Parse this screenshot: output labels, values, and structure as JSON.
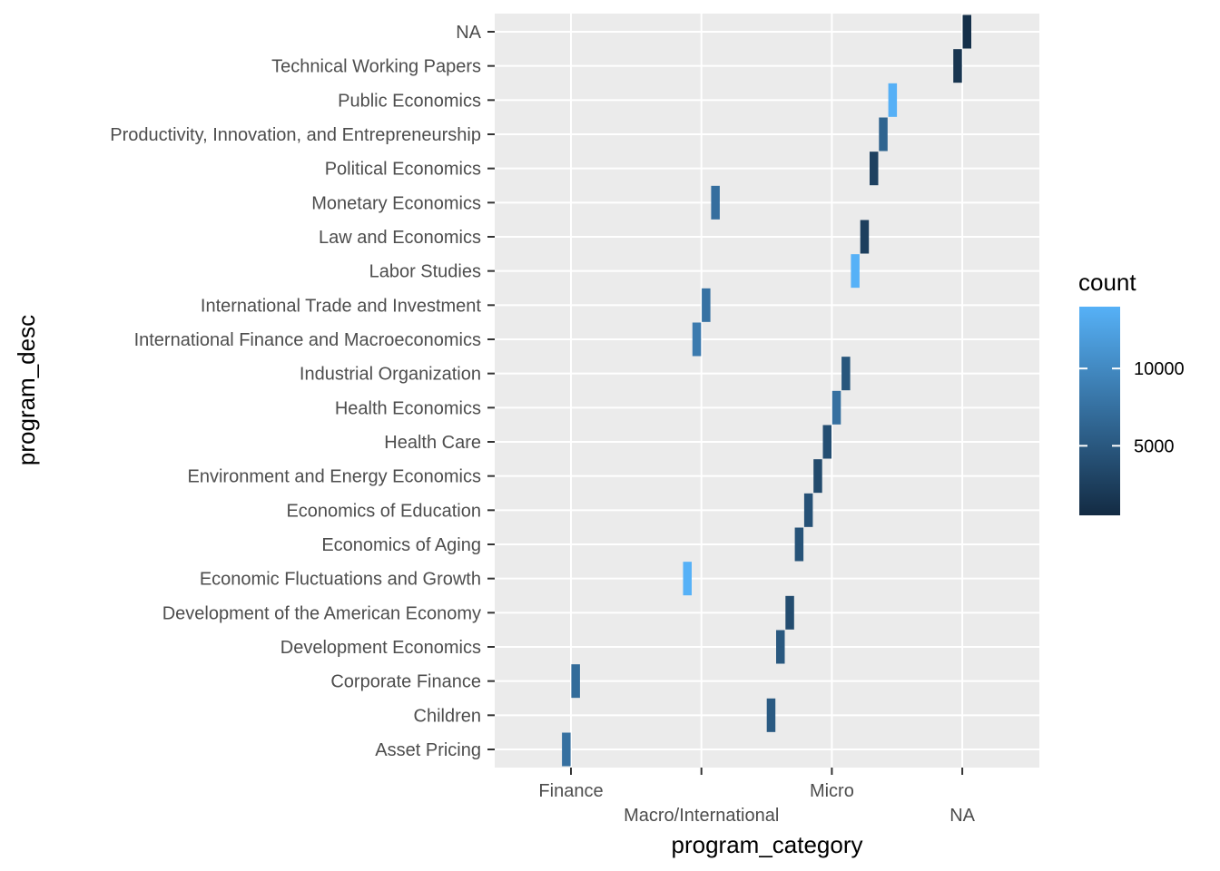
{
  "chart_data": {
    "type": "heatmap",
    "xlabel": "program_category",
    "ylabel": "program_desc",
    "x_categories": [
      "Finance",
      "Macro/International",
      "Micro",
      "NA"
    ],
    "y_categories": [
      "Asset Pricing",
      "Children",
      "Corporate Finance",
      "Development Economics",
      "Development of the American Economy",
      "Economic Fluctuations and Growth",
      "Economics of Aging",
      "Economics of Education",
      "Environment and Energy Economics",
      "Health Care",
      "Health Economics",
      "Industrial Organization",
      "International Finance and Macroeconomics",
      "International Trade and Investment",
      "Labor Studies",
      "Law and Economics",
      "Monetary Economics",
      "Political Economics",
      "Productivity, Innovation, and Entrepreneurship",
      "Public Economics",
      "Technical Working Papers",
      "NA"
    ],
    "cells": [
      {
        "y": "Asset Pricing",
        "x": "Finance",
        "count": 7500
      },
      {
        "y": "Children",
        "x": "Micro",
        "count": 5200
      },
      {
        "y": "Corporate Finance",
        "x": "Finance",
        "count": 7000
      },
      {
        "y": "Development Economics",
        "x": "Micro",
        "count": 5000
      },
      {
        "y": "Development of the American Economy",
        "x": "Micro",
        "count": 3800
      },
      {
        "y": "Economic Fluctuations and Growth",
        "x": "Macro/International",
        "count": 14000
      },
      {
        "y": "Economics of Aging",
        "x": "Micro",
        "count": 4500
      },
      {
        "y": "Economics of Education",
        "x": "Micro",
        "count": 4300
      },
      {
        "y": "Environment and Energy Economics",
        "x": "Micro",
        "count": 3600
      },
      {
        "y": "Health Care",
        "x": "Micro",
        "count": 4000
      },
      {
        "y": "Health Economics",
        "x": "Micro",
        "count": 7500
      },
      {
        "y": "Industrial Organization",
        "x": "Micro",
        "count": 4800
      },
      {
        "y": "International Finance and Macroeconomics",
        "x": "Macro/International",
        "count": 8500
      },
      {
        "y": "International Trade and Investment",
        "x": "Macro/International",
        "count": 7700
      },
      {
        "y": "Labor Studies",
        "x": "Micro",
        "count": 14000
      },
      {
        "y": "Law and Economics",
        "x": "Micro",
        "count": 2500
      },
      {
        "y": "Monetary Economics",
        "x": "Macro/International",
        "count": 7300
      },
      {
        "y": "Political Economics",
        "x": "Micro",
        "count": 2700
      },
      {
        "y": "Productivity, Innovation, and Entrepreneurship",
        "x": "Micro",
        "count": 6200
      },
      {
        "y": "Public Economics",
        "x": "Micro",
        "count": 13900
      },
      {
        "y": "Technical Working Papers",
        "x": "NA",
        "count": 1500
      },
      {
        "y": "NA",
        "x": "NA",
        "count": 1000
      }
    ],
    "legend": {
      "title": "count",
      "ticks": [
        5000,
        10000
      ],
      "range": [
        500,
        14000
      ],
      "low_color": "#132B43",
      "high_color": "#56B1F7",
      "placement": "right"
    },
    "panel_background": "#EBEBEB",
    "grid": true
  }
}
